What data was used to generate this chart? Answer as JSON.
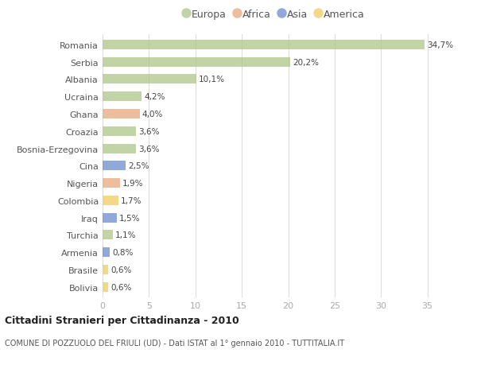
{
  "countries": [
    "Romania",
    "Serbia",
    "Albania",
    "Ucraina",
    "Ghana",
    "Croazia",
    "Bosnia-Erzegovina",
    "Cina",
    "Nigeria",
    "Colombia",
    "Iraq",
    "Turchia",
    "Armenia",
    "Brasile",
    "Bolivia"
  ],
  "values": [
    34.7,
    20.2,
    10.1,
    4.2,
    4.0,
    3.6,
    3.6,
    2.5,
    1.9,
    1.7,
    1.5,
    1.1,
    0.8,
    0.6,
    0.6
  ],
  "labels": [
    "34,7%",
    "20,2%",
    "10,1%",
    "4,2%",
    "4,0%",
    "3,6%",
    "3,6%",
    "2,5%",
    "1,9%",
    "1,7%",
    "1,5%",
    "1,1%",
    "0,8%",
    "0,6%",
    "0,6%"
  ],
  "continents": [
    "Europa",
    "Europa",
    "Europa",
    "Europa",
    "Africa",
    "Europa",
    "Europa",
    "Asia",
    "Africa",
    "America",
    "Asia",
    "Europa",
    "Asia",
    "America",
    "America"
  ],
  "continent_colors": {
    "Europa": "#aec688",
    "Africa": "#e8a87c",
    "Asia": "#6b8ccc",
    "America": "#f0cc60"
  },
  "legend_order": [
    "Europa",
    "Africa",
    "Asia",
    "America"
  ],
  "title": "Cittadini Stranieri per Cittadinanza - 2010",
  "subtitle": "COMUNE DI POZZUOLO DEL FRIULI (UD) - Dati ISTAT al 1° gennaio 2010 - TUTTITALIA.IT",
  "xlim": [
    0,
    37
  ],
  "xticks": [
    0,
    5,
    10,
    15,
    20,
    25,
    30,
    35
  ],
  "background_color": "#ffffff",
  "bar_alpha": 0.75,
  "bar_height": 0.55
}
